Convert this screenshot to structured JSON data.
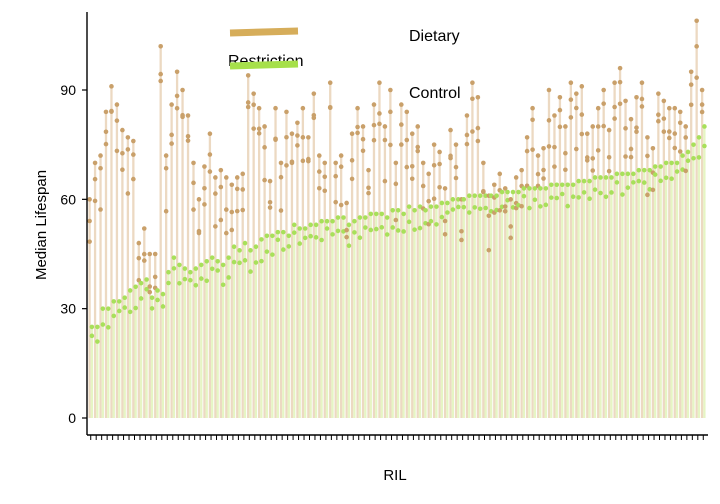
{
  "chart_data": {
    "type": "bar",
    "title": "",
    "xlabel": "RIL",
    "ylabel": "Median Lifespan",
    "ylim": [
      0,
      115
    ],
    "yticks": [
      0,
      30,
      60,
      90
    ],
    "grid": false,
    "legend_position": "top",
    "n_ril": 113,
    "series": [
      {
        "name_parts": [
          "Dietary",
          "Restriction"
        ],
        "color": "#d6ad5a",
        "bar_color": "#ecd9c2",
        "dot_color": "#c9a06a",
        "values": [
          60,
          70,
          72,
          84,
          91,
          86,
          79,
          77,
          76,
          48,
          52,
          45,
          45,
          102,
          72,
          86,
          95,
          90,
          83,
          70,
          60,
          69,
          78,
          66,
          68,
          66,
          64,
          66,
          67,
          94,
          89,
          85,
          80,
          65,
          85,
          70,
          84,
          78,
          81,
          85,
          77,
          89,
          72,
          70,
          92,
          70,
          72,
          59,
          78,
          85,
          80,
          68,
          86,
          92,
          80,
          90,
          70,
          86,
          84,
          78,
          80,
          70,
          67,
          75,
          73,
          63,
          79,
          75,
          60,
          83,
          92,
          88,
          70,
          61,
          64,
          67,
          63,
          60,
          66,
          68,
          77,
          85,
          72,
          74,
          90,
          83,
          88,
          80,
          92,
          89,
          91,
          78,
          80,
          85,
          90,
          79,
          92,
          96,
          87,
          82,
          88,
          92,
          77,
          74,
          89,
          87,
          85,
          85,
          84,
          80,
          95,
          109,
          90
        ]
      },
      {
        "name": "Control",
        "color": "#a6e04a",
        "bar_color": "#e6f5c4",
        "dot_color": "#a8e05a",
        "values": [
          25,
          25,
          30,
          30,
          32,
          32,
          33,
          35,
          36,
          37,
          38,
          33,
          35,
          34,
          40,
          44,
          42,
          41,
          40,
          41,
          42,
          43,
          44,
          43,
          42,
          44,
          47,
          46,
          48,
          46,
          47,
          49,
          50,
          50,
          51,
          51,
          50,
          53,
          52,
          52,
          53,
          53,
          54,
          54,
          54,
          55,
          55,
          53,
          54,
          55,
          55,
          56,
          56,
          56,
          55,
          57,
          57,
          56,
          58,
          57,
          58,
          57,
          58,
          58,
          59,
          59,
          60,
          60,
          60,
          61,
          61,
          61,
          61,
          61,
          61,
          62,
          62,
          62,
          62,
          63,
          63,
          63,
          63,
          63,
          64,
          64,
          64,
          64,
          64,
          65,
          65,
          65,
          66,
          66,
          66,
          66,
          67,
          67,
          67,
          67,
          68,
          68,
          68,
          69,
          69,
          70,
          70,
          70,
          72,
          73,
          75,
          77,
          80
        ]
      }
    ]
  }
}
